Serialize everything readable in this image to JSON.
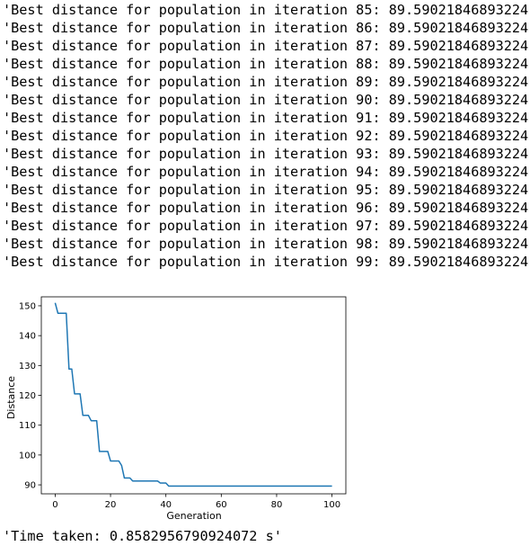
{
  "output": {
    "lines": [
      "'Best distance for population in iteration 85: 89.59021846893224'",
      "'Best distance for population in iteration 86: 89.59021846893224'",
      "'Best distance for population in iteration 87: 89.59021846893224'",
      "'Best distance for population in iteration 88: 89.59021846893224'",
      "'Best distance for population in iteration 89: 89.59021846893224'",
      "'Best distance for population in iteration 90: 89.59021846893224'",
      "'Best distance for population in iteration 91: 89.59021846893224'",
      "'Best distance for population in iteration 92: 89.59021846893224'",
      "'Best distance for population in iteration 93: 89.59021846893224'",
      "'Best distance for population in iteration 94: 89.59021846893224'",
      "'Best distance for population in iteration 95: 89.59021846893224'",
      "'Best distance for population in iteration 96: 89.59021846893224'",
      "'Best distance for population in iteration 97: 89.59021846893224'",
      "'Best distance for population in iteration 98: 89.59021846893224'",
      "'Best distance for population in iteration 99: 89.59021846893224'"
    ],
    "time_taken": "'Time taken: 0.8582956790924072 s'"
  },
  "chart_data": {
    "type": "line",
    "title": "",
    "xlabel": "Generation",
    "ylabel": "Distance",
    "xlim": [
      -5,
      105
    ],
    "ylim": [
      87,
      153
    ],
    "xticks": [
      0,
      20,
      40,
      60,
      80,
      100
    ],
    "yticks": [
      90,
      100,
      110,
      120,
      130,
      140,
      150
    ],
    "grid": false,
    "line_color": "#1f77b4",
    "series": [
      {
        "x": [
          0,
          1,
          2,
          3,
          4,
          5,
          6,
          7,
          8,
          9,
          10,
          11,
          12,
          13,
          14,
          15,
          16,
          17,
          18,
          19,
          20,
          21,
          22,
          23,
          24,
          25,
          26,
          27,
          28,
          29,
          30,
          31,
          32,
          33,
          34,
          35,
          36,
          37,
          38,
          39,
          40,
          41,
          42,
          100
        ],
        "y": [
          151,
          147.5,
          147.5,
          147.5,
          147.5,
          128.8,
          128.8,
          120.5,
          120.5,
          120.5,
          113.3,
          113.3,
          113.3,
          111.5,
          111.5,
          111.5,
          101.2,
          101.2,
          101.2,
          101.2,
          98,
          98,
          98,
          98,
          96.5,
          92.3,
          92.3,
          92.3,
          91.3,
          91.3,
          91.3,
          91.3,
          91.3,
          91.3,
          91.3,
          91.3,
          91.3,
          91.3,
          90.6,
          90.6,
          90.6,
          89.59,
          89.59,
          89.59
        ]
      }
    ]
  }
}
